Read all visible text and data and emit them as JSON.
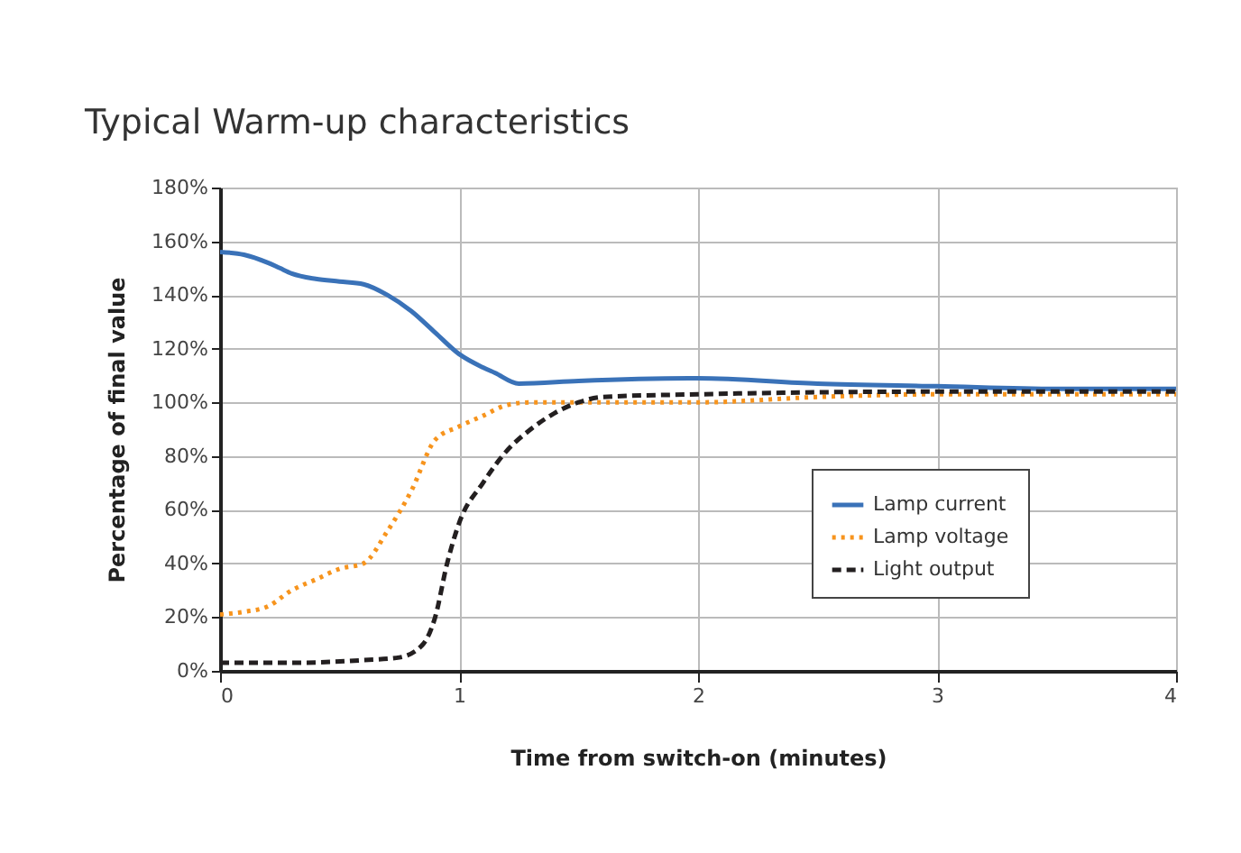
{
  "chart_data": {
    "type": "line",
    "title": "Typical Warm-up characteristics",
    "xlabel": "Time from switch-on (minutes)",
    "ylabel": "Percentage of final value",
    "xlim": [
      0,
      4
    ],
    "xticks": [
      0,
      1,
      2,
      3,
      4
    ],
    "ylim": [
      0,
      180
    ],
    "yticks": [
      {
        "value": 0,
        "label": "0%"
      },
      {
        "value": 20,
        "label": "20%"
      },
      {
        "value": 40,
        "label": "40%"
      },
      {
        "value": 60,
        "label": "60%"
      },
      {
        "value": 80,
        "label": "80%"
      },
      {
        "value": 100,
        "label": "100%"
      },
      {
        "value": 120,
        "label": "120%"
      },
      {
        "value": 140,
        "label": "140%"
      },
      {
        "value": 160,
        "label": "160%"
      },
      {
        "value": 180,
        "label": "180%"
      }
    ],
    "grid": true,
    "legend": "right",
    "series": [
      {
        "name": "Lamp current",
        "color": "#3a72b8",
        "line_style": "solid",
        "x": [
          0,
          0.1,
          0.2,
          0.25,
          0.3,
          0.4,
          0.5,
          0.6,
          0.7,
          0.8,
          0.9,
          1.0,
          1.1,
          1.15,
          1.25,
          1.5,
          2,
          2.5,
          3,
          3.5,
          4
        ],
        "values": [
          156,
          155,
          152,
          150,
          148,
          146,
          145,
          144,
          140,
          134,
          126,
          118,
          113,
          111,
          107,
          108,
          109,
          107,
          106,
          105,
          105
        ]
      },
      {
        "name": "Lamp voltage",
        "color": "#f7941d",
        "line_style": "dotted",
        "x": [
          0,
          0.1,
          0.2,
          0.3,
          0.4,
          0.5,
          0.6,
          0.7,
          0.8,
          0.9,
          1.0,
          1.1,
          1.2,
          1.3,
          1.5,
          2,
          2.5,
          3,
          3.5,
          4
        ],
        "values": [
          21,
          22,
          24,
          30,
          34,
          38,
          40,
          52,
          67,
          86,
          91,
          95,
          99,
          100,
          100,
          100,
          102,
          103,
          103,
          103
        ]
      },
      {
        "name": "Light output",
        "color": "#231f20",
        "line_style": "dashed",
        "x": [
          0,
          0.3,
          0.6,
          0.75,
          0.85,
          0.9,
          0.95,
          1.0,
          1.1,
          1.2,
          1.3,
          1.4,
          1.5,
          1.6,
          2,
          3,
          4
        ],
        "values": [
          3,
          3,
          4,
          5,
          10,
          20,
          40,
          55,
          70,
          82,
          90,
          96,
          100,
          102,
          103,
          104,
          104
        ]
      }
    ]
  }
}
